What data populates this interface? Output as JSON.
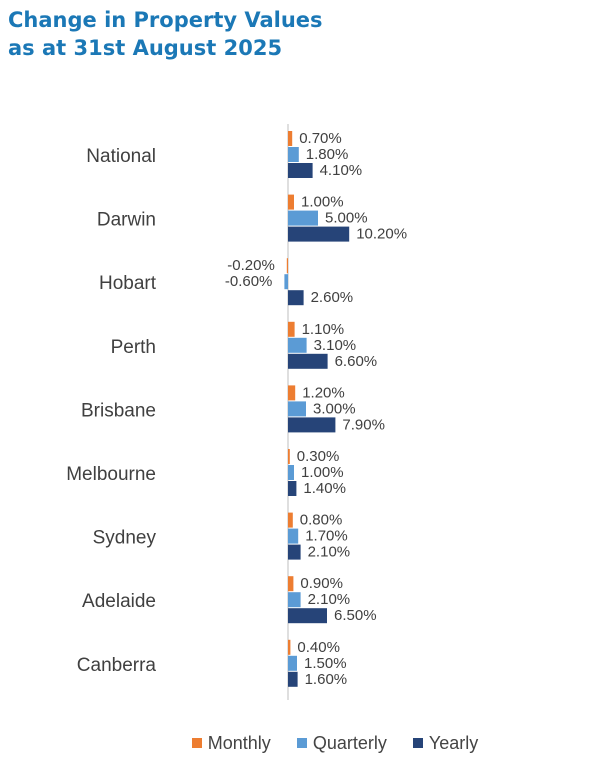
{
  "title_line1": "Change in Property Values",
  "title_line2": "as at 31st August 2025",
  "colors": {
    "title": "#1b78b6",
    "monthly": "#ed7d31",
    "quarterly": "#5b9bd5",
    "yearly": "#264478",
    "axis": "#bfbfbf"
  },
  "legend": [
    {
      "label": "Monthly",
      "color": "#ed7d31"
    },
    {
      "label": "Quarterly",
      "color": "#5b9bd5"
    },
    {
      "label": "Yearly",
      "color": "#264478"
    }
  ],
  "chart_data": {
    "type": "bar",
    "orientation": "horizontal",
    "title": "Change in Property Values as at 31st August 2025",
    "categories": [
      "National",
      "Darwin",
      "Hobart",
      "Perth",
      "Brisbane",
      "Melbourne",
      "Sydney",
      "Adelaide",
      "Canberra"
    ],
    "series": [
      {
        "name": "Monthly",
        "values": [
          0.7,
          1.0,
          -0.2,
          1.1,
          1.2,
          0.3,
          0.8,
          0.9,
          0.4
        ],
        "labels": [
          "0.70%",
          "1.00%",
          "-0.20%",
          "1.10%",
          "1.20%",
          "0.30%",
          "0.80%",
          "0.90%",
          "0.40%"
        ]
      },
      {
        "name": "Quarterly",
        "values": [
          1.8,
          5.0,
          -0.6,
          3.1,
          3.0,
          1.0,
          1.7,
          2.1,
          1.5
        ],
        "labels": [
          "1.80%",
          "5.00%",
          "-0.60%",
          "3.10%",
          "3.00%",
          "1.00%",
          "1.70%",
          "2.10%",
          "1.50%"
        ]
      },
      {
        "name": "Yearly",
        "values": [
          4.1,
          10.2,
          2.6,
          6.6,
          7.9,
          1.4,
          2.1,
          6.5,
          1.6
        ],
        "labels": [
          "4.10%",
          "10.20%",
          "2.60%",
          "6.60%",
          "7.90%",
          "1.40%",
          "2.10%",
          "6.50%",
          "1.60%"
        ]
      }
    ],
    "legend_position": "bottom",
    "grid": false,
    "data_labels": true
  }
}
